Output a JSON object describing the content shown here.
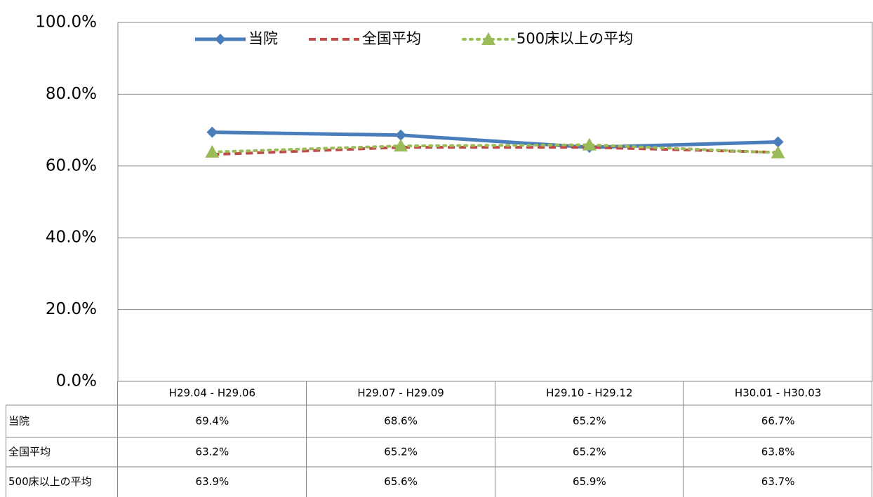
{
  "chart_data": {
    "type": "line",
    "categories": [
      "H29.04 - H29.06",
      "H29.07 - H29.09",
      "H29.10 - H29.12",
      "H30.01 - H30.03"
    ],
    "series": [
      {
        "name": "当院",
        "color": "#4a7ebb",
        "marker": "diamond",
        "dash": "solid",
        "values": [
          69.4,
          68.6,
          65.2,
          66.7
        ],
        "value_labels": [
          "69.4%",
          "68.6%",
          "65.2%",
          "66.7%"
        ]
      },
      {
        "name": "全国平均",
        "color": "#be4b48",
        "marker": "none",
        "dash": "dashed",
        "values": [
          63.2,
          65.2,
          65.2,
          63.8
        ],
        "value_labels": [
          "63.2%",
          "65.2%",
          "65.2%",
          "63.8%"
        ]
      },
      {
        "name": "500床以上の平均",
        "color": "#9bbb59",
        "marker": "triangle",
        "dash": "dotted",
        "values": [
          63.9,
          65.6,
          65.9,
          63.7
        ],
        "value_labels": [
          "63.9%",
          "65.6%",
          "65.9%",
          "63.7%"
        ]
      }
    ],
    "ylim": [
      0,
      100
    ],
    "yticks": [
      {
        "value": 0,
        "label": "0.0%"
      },
      {
        "value": 20,
        "label": "20.0%"
      },
      {
        "value": 40,
        "label": "40.0%"
      },
      {
        "value": 60,
        "label": "60.0%"
      },
      {
        "value": 80,
        "label": "80.0%"
      },
      {
        "value": 100,
        "label": "100.0%"
      }
    ],
    "grid": true,
    "legend": "top"
  }
}
